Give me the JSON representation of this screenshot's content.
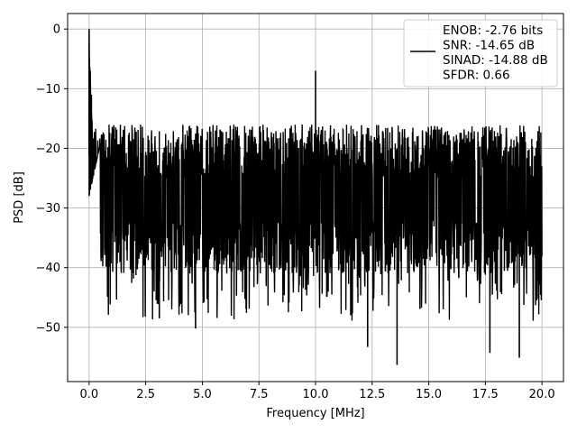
{
  "chart_data": {
    "type": "line",
    "title": "",
    "xlabel": "Frequency [MHz]",
    "ylabel": "PSD [dB]",
    "xlim": [
      -0.95,
      20.95
    ],
    "ylim": [
      -59.1,
      2.6
    ],
    "xticks": [
      0.0,
      2.5,
      5.0,
      7.5,
      10.0,
      12.5,
      15.0,
      17.5,
      20.0
    ],
    "xtick_labels": [
      "0.0",
      "2.5",
      "5.0",
      "7.5",
      "10.0",
      "12.5",
      "15.0",
      "17.5",
      "20.0"
    ],
    "yticks": [
      0,
      -10,
      -20,
      -30,
      -40,
      -50
    ],
    "ytick_labels": [
      "0",
      "−10",
      "−20",
      "−30",
      "−40",
      "−50"
    ],
    "grid": true,
    "legend_position": "top-right",
    "legend": [
      {
        "line_color": "#000000",
        "lines": [
          "ENOB: -2.76 bits",
          "SNR: -14.65 dB",
          "SINAD: -14.88 dB",
          "SFDR: 0.66"
        ]
      }
    ],
    "series": [
      {
        "color": "#000000",
        "x_range": [
          0,
          20
        ],
        "noise_floor_mean_db": -28,
        "noise_floor_upper_db": -19,
        "noise_floor_lower_db": -41,
        "peaks": [
          {
            "x": 0.0,
            "y": 0.0
          },
          {
            "x": 0.05,
            "y": -7
          },
          {
            "x": 0.1,
            "y": -11
          },
          {
            "x": 10.0,
            "y": -7
          }
        ],
        "notable_dips": [
          {
            "x": 3.1,
            "y": -48.5
          },
          {
            "x": 4.7,
            "y": -50.2
          },
          {
            "x": 12.3,
            "y": -53.3
          },
          {
            "x": 13.6,
            "y": -56.3
          },
          {
            "x": 17.7,
            "y": -54.3
          },
          {
            "x": 19.0,
            "y": -55.1
          }
        ]
      }
    ]
  }
}
